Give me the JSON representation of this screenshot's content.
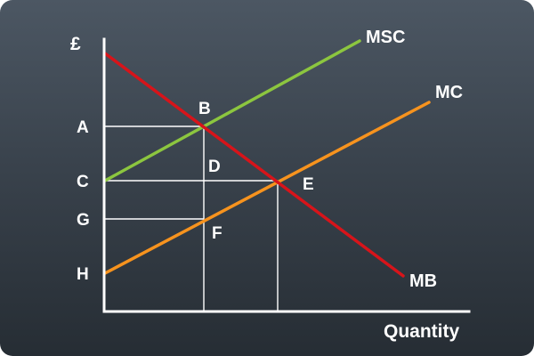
{
  "diagram": {
    "y_axis_label": "£",
    "x_axis_label": "Quantity",
    "price_labels": {
      "A": "A",
      "C": "C",
      "G": "G",
      "H": "H"
    },
    "point_labels": {
      "B": "B",
      "D": "D",
      "E": "E",
      "F": "F"
    },
    "curves": {
      "msc": {
        "label": "MSC",
        "color": "#8cc63f"
      },
      "mc": {
        "label": "MC",
        "color": "#f7931e"
      },
      "mb": {
        "label": "MB",
        "color": "#d7141a"
      }
    },
    "axis_color": "#ffffff"
  }
}
